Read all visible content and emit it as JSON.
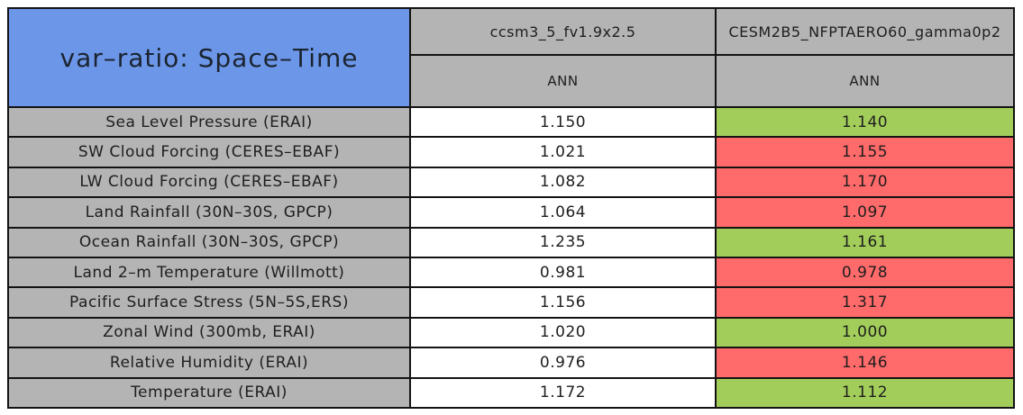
{
  "title": "var–ratio: Space–Time",
  "columns": [
    {
      "model": "ccsm3_5_fv1.9x2.5",
      "season": "ANN"
    },
    {
      "model": "CESM2B5_NFPTAERO60_gamma0p2",
      "season": "ANN"
    }
  ],
  "rows": [
    {
      "label": "Sea Level Pressure (ERAI)",
      "v1": "1.150",
      "v2": "1.140",
      "v2_status": "green",
      "v2_bg": "#A2CD5A"
    },
    {
      "label": "SW Cloud Forcing (CERES–EBAF)",
      "v1": "1.021",
      "v2": "1.155",
      "v2_status": "red",
      "v2_bg": "#FF6A6A"
    },
    {
      "label": "LW Cloud Forcing (CERES–EBAF)",
      "v1": "1.082",
      "v2": "1.170",
      "v2_status": "red",
      "v2_bg": "#FF6A6A"
    },
    {
      "label": "Land Rainfall (30N–30S, GPCP)",
      "v1": "1.064",
      "v2": "1.097",
      "v2_status": "red",
      "v2_bg": "#FF6A6A"
    },
    {
      "label": "Ocean Rainfall (30N–30S, GPCP)",
      "v1": "1.235",
      "v2": "1.161",
      "v2_status": "green",
      "v2_bg": "#A2CD5A"
    },
    {
      "label": "Land 2–m Temperature (Willmott)",
      "v1": "0.981",
      "v2": "0.978",
      "v2_status": "red",
      "v2_bg": "#FF6A6A"
    },
    {
      "label": "Pacific Surface Stress (5N–5S,ERS)",
      "v1": "1.156",
      "v2": "1.317",
      "v2_status": "red",
      "v2_bg": "#FF6A6A"
    },
    {
      "label": "Zonal Wind (300mb, ERAI)",
      "v1": "1.020",
      "v2": "1.000",
      "v2_status": "green",
      "v2_bg": "#A2CD5A"
    },
    {
      "label": "Relative Humidity (ERAI)",
      "v1": "0.976",
      "v2": "1.146",
      "v2_status": "red",
      "v2_bg": "#FF6A6A"
    },
    {
      "label": "Temperature (ERAI)",
      "v1": "1.172",
      "v2": "1.112",
      "v2_status": "green",
      "v2_bg": "#A2CD5A"
    }
  ],
  "colors": {
    "title_bg": "#6C96E8",
    "header_bg": "#B4B4B4",
    "label_bg": "#B4B4B4",
    "value_bg": "#FFFFFF",
    "better_green": "#A2CD5A",
    "worse_red": "#FF6A6A",
    "grid_border": "#131313"
  },
  "chart_data": {
    "type": "table",
    "title": "var–ratio: Space–Time",
    "row_labels": [
      "Sea Level Pressure (ERAI)",
      "SW Cloud Forcing (CERES–EBAF)",
      "LW Cloud Forcing (CERES–EBAF)",
      "Land Rainfall (30N–30S, GPCP)",
      "Ocean Rainfall (30N–30S, GPCP)",
      "Land 2–m Temperature (Willmott)",
      "Pacific Surface Stress (5N–5S,ERS)",
      "Zonal Wind (300mb, ERAI)",
      "Relative Humidity (ERAI)",
      "Temperature (ERAI)"
    ],
    "series": [
      {
        "name": "ccsm3_5_fv1.9x2.5",
        "season": "ANN",
        "values": [
          1.15,
          1.021,
          1.082,
          1.064,
          1.235,
          0.981,
          1.156,
          1.02,
          0.976,
          1.172
        ]
      },
      {
        "name": "CESM2B5_NFPTAERO60_gamma0p2",
        "season": "ANN",
        "values": [
          1.14,
          1.155,
          1.17,
          1.097,
          1.161,
          0.978,
          1.317,
          1.0,
          1.146,
          1.112
        ],
        "cell_highlight": [
          "green",
          "red",
          "red",
          "red",
          "green",
          "red",
          "red",
          "green",
          "red",
          "green"
        ]
      }
    ],
    "layout": {
      "legend": "none",
      "grid": "on",
      "highlight_rule": "green = closer to 1.0 than reference, red = farther"
    }
  }
}
